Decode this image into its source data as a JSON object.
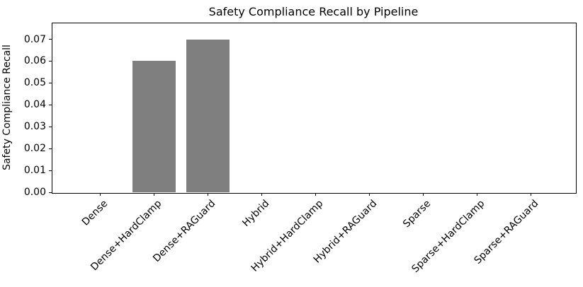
{
  "chart_data": {
    "type": "bar",
    "title": "Safety Compliance Recall by Pipeline",
    "xlabel": "",
    "ylabel": "Safety Compliance Recall",
    "categories": [
      "Dense",
      "Dense+HardClamp",
      "Dense+RAGuard",
      "Hybrid",
      "Hybrid+HardClamp",
      "Hybrid+RAGuard",
      "Sparse",
      "Sparse+HardClamp",
      "Sparse+RAGuard"
    ],
    "values": [
      0,
      0.06,
      0.07,
      0,
      0,
      0,
      0,
      0,
      0
    ],
    "yticks": [
      0,
      0.01,
      0.02,
      0.03,
      0.04,
      0.05,
      0.06,
      0.07
    ],
    "ytick_labels": [
      "0.00",
      "0.01",
      "0.02",
      "0.03",
      "0.04",
      "0.05",
      "0.06",
      "0.07"
    ],
    "ylim": [
      0,
      0.0776
    ],
    "x_tick_rotation_deg": 45,
    "grid": false,
    "legend_position": "none",
    "bar_color": "#7f7f7f",
    "axis_color": "#000000",
    "text_color": "#000000",
    "background_color": "#ffffff"
  }
}
